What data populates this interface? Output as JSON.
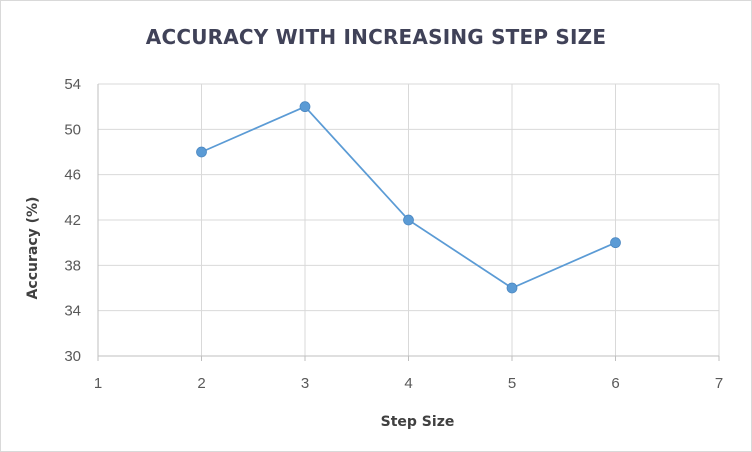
{
  "chart_data": {
    "type": "line",
    "title": "ACCURACY WITH INCREASING STEP SIZE",
    "xlabel": "Step Size",
    "ylabel": "Accuracy (%)",
    "x": [
      2,
      3,
      4,
      5,
      6
    ],
    "y": [
      48,
      52,
      42,
      36,
      40
    ],
    "xlim": [
      1,
      7
    ],
    "ylim": [
      30,
      54
    ],
    "xticks": [
      1,
      2,
      3,
      4,
      5,
      6,
      7
    ],
    "yticks": [
      30,
      34,
      38,
      42,
      46,
      50,
      54
    ],
    "grid": true,
    "line_color": "#5b9bd5",
    "marker_color": "#5b9bd5",
    "grid_color": "#d9d9d9"
  }
}
